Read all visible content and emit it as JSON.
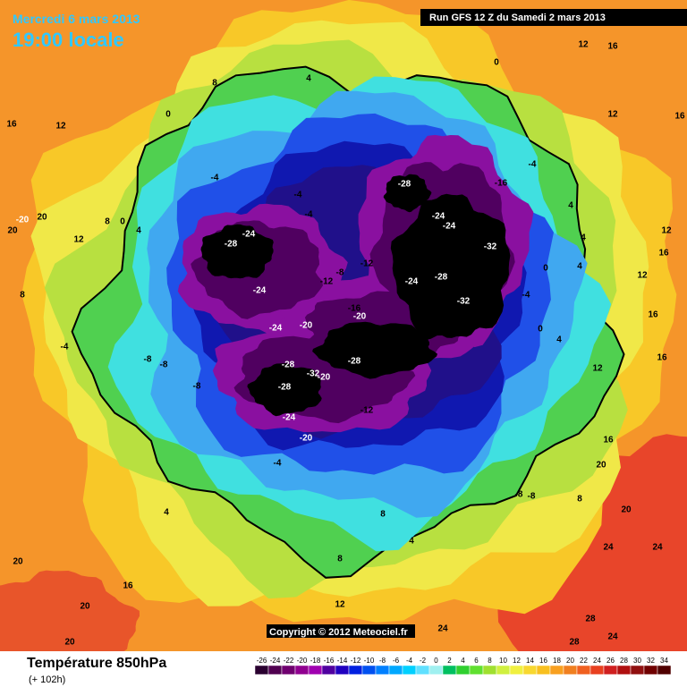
{
  "header": {
    "date": "Mercredi 6 mars 2013",
    "time": "19:00 locale",
    "run": "Run GFS 12 Z du Samedi 2 mars 2013"
  },
  "copyright": "Copyright © 2012 Meteociel.fr",
  "footer": {
    "title": "Température 850hPa",
    "lead": "(+ 102h)"
  },
  "colorbar": {
    "ticks": [
      -26,
      -24,
      -22,
      -20,
      -18,
      -16,
      -14,
      -12,
      -10,
      -8,
      -6,
      -4,
      -2,
      0,
      2,
      4,
      6,
      8,
      10,
      12,
      14,
      16,
      18,
      20,
      22,
      24,
      26,
      28,
      30,
      32,
      34
    ],
    "colors": [
      "#2a0030",
      "#500050",
      "#700070",
      "#900090",
      "#a000b0",
      "#5000a0",
      "#2000c0",
      "#0020e0",
      "#0050f0",
      "#0080ff",
      "#00a8ff",
      "#00d0ff",
      "#60e0ff",
      "#a0f0f0",
      "#00c060",
      "#30d030",
      "#60e030",
      "#a0e030",
      "#d0f040",
      "#f0f040",
      "#f8d830",
      "#f8c020",
      "#f8a020",
      "#f08020",
      "#f06020",
      "#e84020",
      "#d02020",
      "#b01010",
      "#901010",
      "#700000",
      "#500000"
    ]
  },
  "contour_labels": [
    16,
    12,
    8,
    0,
    4,
    0,
    12,
    16,
    12,
    16,
    -4,
    -16,
    -28,
    -24,
    -24,
    -32,
    -28,
    -24,
    -32,
    -24,
    -28,
    -24,
    -12,
    -8,
    -12,
    -16,
    -20,
    -20,
    -24,
    -28,
    -32,
    -28,
    -28,
    -20,
    -12,
    -24,
    -20,
    -4,
    -8,
    -8,
    -8,
    -4,
    -4,
    -4,
    -4,
    12,
    8,
    4,
    0,
    20,
    -20,
    20,
    8,
    4,
    8,
    8,
    4,
    -8,
    -8,
    8,
    20,
    20,
    24,
    24,
    20,
    16,
    20,
    12,
    20,
    24,
    28,
    28,
    24,
    12,
    16,
    12,
    16,
    16,
    12,
    16,
    0,
    4,
    4,
    0,
    -4,
    4,
    4
  ]
}
